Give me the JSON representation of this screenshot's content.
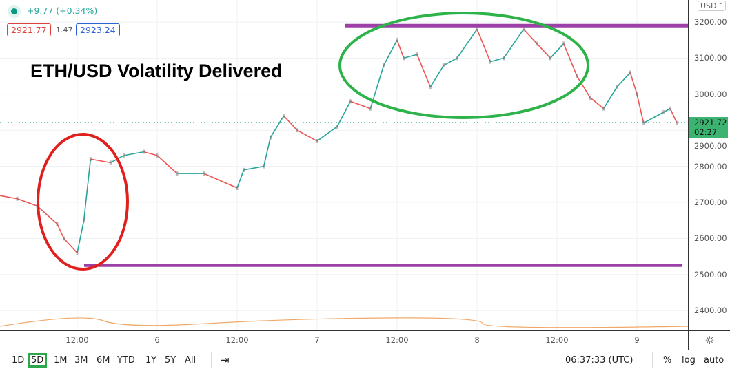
{
  "header": {
    "change": "+9.77 (+0.34%)",
    "bid": "2921.77",
    "spread": "1.47",
    "ask": "2923.24",
    "currency": "USD",
    "status_color": "#089981"
  },
  "annotation": {
    "title": "ETH/USD Volatility Delivered",
    "resistance_level": 3190,
    "support_level": 2525,
    "resistance_color": "#9c3fa6",
    "green_ellipse_color": "#2db34a",
    "red_ellipse_color": "#e0201e"
  },
  "current": {
    "price": "2921.72",
    "countdown": "02:27"
  },
  "chart_data": {
    "type": "line",
    "series_kind": "candlestick (approximated by close)",
    "ylim": [
      2350,
      3260
    ],
    "yticks": [
      "3200.00",
      "3100.00",
      "3000.00",
      "2900.00",
      "2800.00",
      "2700.00",
      "2600.00",
      "2500.00",
      "2400.00"
    ],
    "xticks": [
      "12:00",
      "6",
      "12:00",
      "7",
      "12:00",
      "8",
      "12:00",
      "9"
    ],
    "grid": true,
    "up_color": "#26a69a",
    "down_color": "#ef5350",
    "points": [
      [
        "5 00:00",
        2720
      ],
      [
        "5 03:00",
        2710
      ],
      [
        "5 06:00",
        2690
      ],
      [
        "5 09:00",
        2640
      ],
      [
        "5 10:00",
        2600
      ],
      [
        "5 12:00",
        2560
      ],
      [
        "5 13:00",
        2650
      ],
      [
        "5 14:00",
        2820
      ],
      [
        "5 17:00",
        2810
      ],
      [
        "5 19:00",
        2830
      ],
      [
        "5 22:00",
        2840
      ],
      [
        "6 00:00",
        2830
      ],
      [
        "6 03:00",
        2780
      ],
      [
        "6 07:00",
        2780
      ],
      [
        "6 12:00",
        2740
      ],
      [
        "6 13:00",
        2790
      ],
      [
        "6 16:00",
        2800
      ],
      [
        "6 17:00",
        2880
      ],
      [
        "6 19:00",
        2940
      ],
      [
        "6 21:00",
        2900
      ],
      [
        "7 00:00",
        2870
      ],
      [
        "7 03:00",
        2910
      ],
      [
        "7 05:00",
        2980
      ],
      [
        "7 08:00",
        2960
      ],
      [
        "7 10:00",
        3080
      ],
      [
        "7 12:00",
        3150
      ],
      [
        "7 13:00",
        3100
      ],
      [
        "7 15:00",
        3110
      ],
      [
        "7 17:00",
        3020
      ],
      [
        "7 19:00",
        3080
      ],
      [
        "7 21:00",
        3100
      ],
      [
        "8 00:00",
        3180
      ],
      [
        "8 02:00",
        3090
      ],
      [
        "8 04:00",
        3100
      ],
      [
        "8 07:00",
        3180
      ],
      [
        "8 09:00",
        3140
      ],
      [
        "8 11:00",
        3100
      ],
      [
        "8 13:00",
        3140
      ],
      [
        "8 15:00",
        3050
      ],
      [
        "8 17:00",
        2990
      ],
      [
        "8 19:00",
        2960
      ],
      [
        "8 21:00",
        3020
      ],
      [
        "8 23:00",
        3060
      ],
      [
        "9 00:00",
        3000
      ],
      [
        "9 01:00",
        2920
      ],
      [
        "9 04:00",
        2950
      ],
      [
        "9 05:00",
        2960
      ],
      [
        "9 06:00",
        2920
      ]
    ]
  },
  "footer": {
    "ranges": [
      "1D",
      "5D",
      "1M",
      "3M",
      "6M",
      "YTD",
      "1Y",
      "5Y",
      "All"
    ],
    "active_range": "5D",
    "time": "06:37:33 (UTC)",
    "percent": "%",
    "log": "log",
    "auto": "auto"
  }
}
